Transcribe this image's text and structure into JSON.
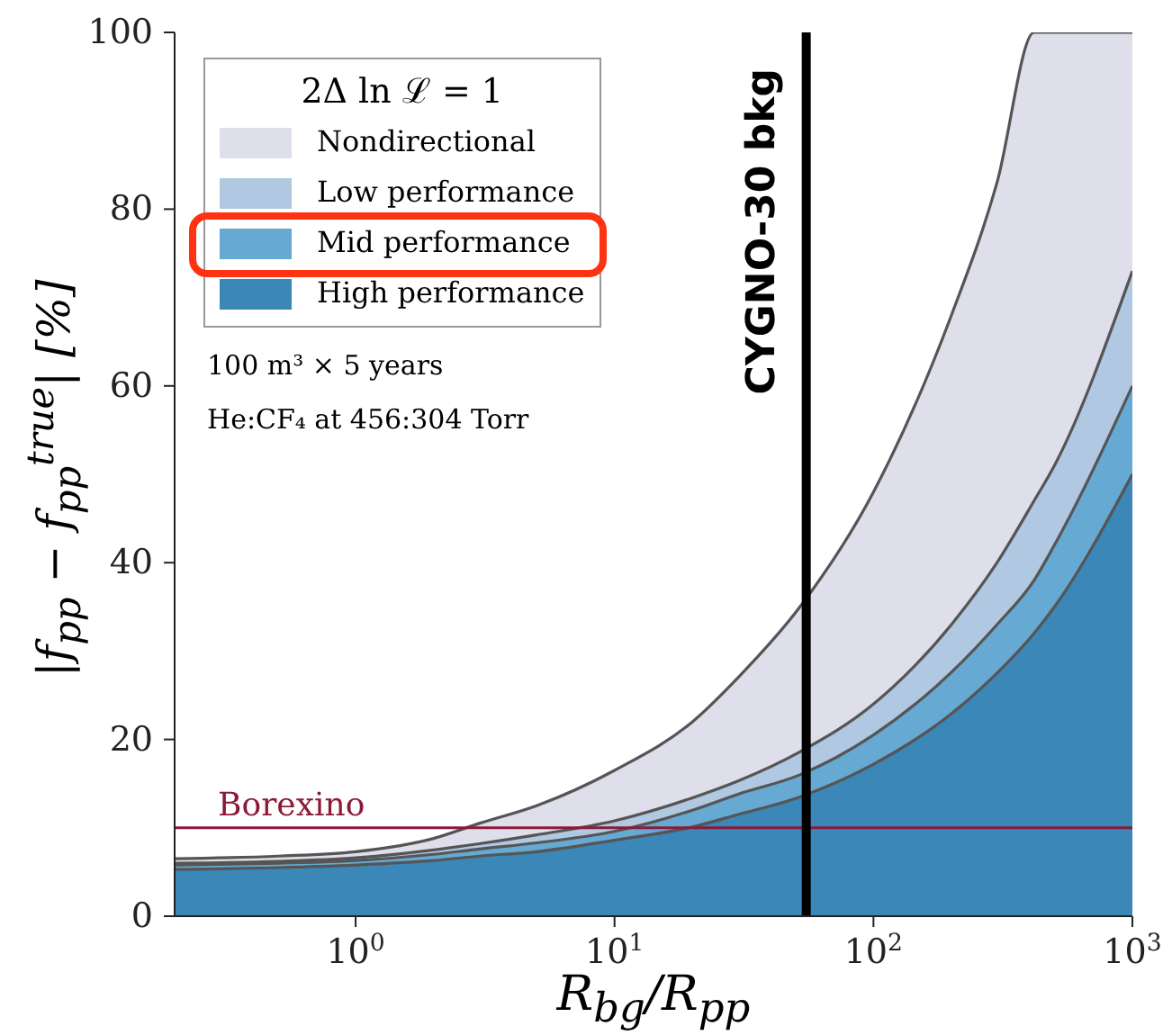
{
  "chart_data": {
    "type": "area",
    "xlabel": "R$_{bg}$/R$_{pp}$",
    "ylabel": "|f$_{pp}$ − f$_{pp}$$^{true}$| [%]",
    "legend_title": "2Δ ln ℒ = 1",
    "legend": "top left",
    "log": "x",
    "x": [
      0.2,
      0.5,
      1,
      2,
      3,
      5,
      10,
      20,
      30,
      52,
      100,
      200,
      300,
      417,
      500,
      1000
    ],
    "series": [
      {
        "name": "Nondirectional",
        "color": "#dfdfec",
        "values": [
          6.5,
          6.8,
          7.3,
          8.8,
          10.5,
          12.5,
          16.5,
          22,
          27,
          35,
          48,
          68,
          83,
          100,
          100,
          100
        ]
      },
      {
        "name": "Low performance",
        "color": "#b0c8e2",
        "values": [
          6.0,
          6.2,
          6.6,
          7.5,
          8.2,
          9.2,
          10.8,
          13.4,
          15.3,
          18.6,
          24,
          33,
          40,
          47,
          51,
          73
        ]
      },
      {
        "name": "Mid performance",
        "color": "#66a9d2",
        "values": [
          5.8,
          6.0,
          6.3,
          7.0,
          7.6,
          8.3,
          9.6,
          12,
          13.8,
          16,
          20.5,
          27.6,
          33,
          38,
          42,
          60
        ]
      },
      {
        "name": "High performance",
        "color": "#3a87b8",
        "values": [
          5.3,
          5.5,
          5.8,
          6.3,
          6.8,
          7.3,
          8.6,
          10.1,
          11.5,
          13.5,
          17.2,
          22.9,
          27.5,
          32,
          35,
          50
        ]
      }
    ],
    "xlim": [
      0.2,
      1000
    ],
    "xticks": [
      {
        "value": 1,
        "label": "10$^{0}$"
      },
      {
        "value": 10,
        "label": "10$^{1}$"
      },
      {
        "value": 100,
        "label": "10$^{2}$"
      },
      {
        "value": 1000,
        "label": "10$^{3}$"
      }
    ],
    "ylim": [
      0,
      100
    ],
    "yticks": [
      0,
      20,
      40,
      60,
      80,
      100
    ],
    "ref_lines": [
      {
        "axis": "y",
        "value": 10,
        "label": "Borexino",
        "color": "#8b1a3a"
      },
      {
        "axis": "x",
        "value": 55,
        "label": "CYGNO-30 bkg",
        "color": "#000000"
      }
    ],
    "annotations": [
      "100 m³ × 5 years",
      "He:CF₄ at 456:304 Torr"
    ]
  }
}
